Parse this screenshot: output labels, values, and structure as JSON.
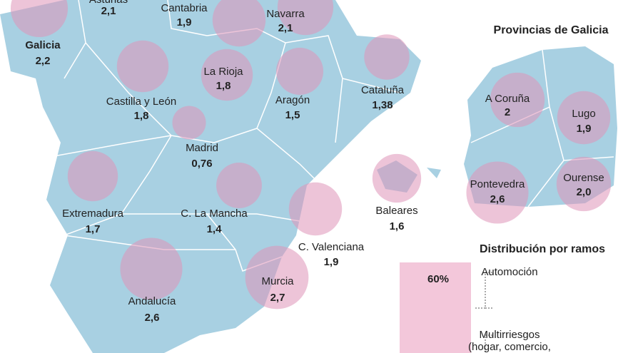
{
  "map": {
    "regions": [
      {
        "name": "Galicia",
        "value": 2.2,
        "value_label": "2,2"
      },
      {
        "name": "Asturias",
        "value": 2.1,
        "value_label": "2,1"
      },
      {
        "name": "Cantabria",
        "value": 1.9,
        "value_label": "1,9"
      },
      {
        "name": "Navarra",
        "value": 2.1,
        "value_label": "2,1"
      },
      {
        "name": "La Rioja",
        "value": 1.8,
        "value_label": "1,8"
      },
      {
        "name": "Castilla y León",
        "value": 1.8,
        "value_label": "1,8"
      },
      {
        "name": "Aragón",
        "value": 1.5,
        "value_label": "1,5"
      },
      {
        "name": "Cataluña",
        "value": 1.38,
        "value_label": "1,38"
      },
      {
        "name": "Madrid",
        "value": 0.76,
        "value_label": "0,76"
      },
      {
        "name": "Extremadura",
        "value": 1.7,
        "value_label": "1,7"
      },
      {
        "name": "C. La Mancha",
        "value": 1.4,
        "value_label": "1,4"
      },
      {
        "name": "Baleares",
        "value": 1.6,
        "value_label": "1,6"
      },
      {
        "name": "C. Valenciana",
        "value": 1.9,
        "value_label": "1,9"
      },
      {
        "name": "Andalucía",
        "value": 2.6,
        "value_label": "2,6"
      },
      {
        "name": "Murcia",
        "value": 2.7,
        "value_label": "2,7"
      }
    ]
  },
  "galicia": {
    "title": "Provincias de Galicia",
    "provinces": [
      {
        "name": "A Coruña",
        "value": 2,
        "value_label": "2"
      },
      {
        "name": "Lugo",
        "value": 1.9,
        "value_label": "1,9"
      },
      {
        "name": "Pontevedra",
        "value": 2.6,
        "value_label": "2,6"
      },
      {
        "name": "Ourense",
        "value": 2.0,
        "value_label": "2,0"
      }
    ]
  },
  "distribution": {
    "title": "Distribución por ramos",
    "value": 60,
    "value_label": "60%",
    "labels": [
      "Automoción",
      "Multirriesgos",
      "(hogar, comercio,"
    ]
  }
}
